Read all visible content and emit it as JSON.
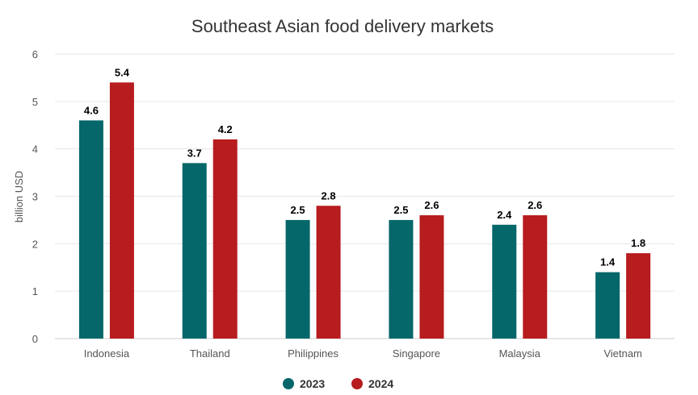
{
  "chart_data": {
    "type": "bar",
    "title": "Southeast Asian food delivery markets",
    "ylabel": "billion USD",
    "xlabel": "",
    "ylim": [
      0,
      6
    ],
    "yticks": [
      "0",
      "1",
      "2",
      "3",
      "4",
      "5",
      "6"
    ],
    "categories": [
      "Indonesia",
      "Thailand",
      "Philippines",
      "Singapore",
      "Malaysia",
      "Vietnam"
    ],
    "series": [
      {
        "name": "2023",
        "color": "#05676a",
        "values": [
          4.6,
          3.7,
          2.5,
          2.5,
          2.4,
          1.4
        ]
      },
      {
        "name": "2024",
        "color": "#b71c1f",
        "values": [
          5.4,
          4.2,
          2.8,
          2.6,
          2.6,
          1.8
        ]
      }
    ],
    "grid": true,
    "legend_position": "bottom-center",
    "data_labels": true
  }
}
